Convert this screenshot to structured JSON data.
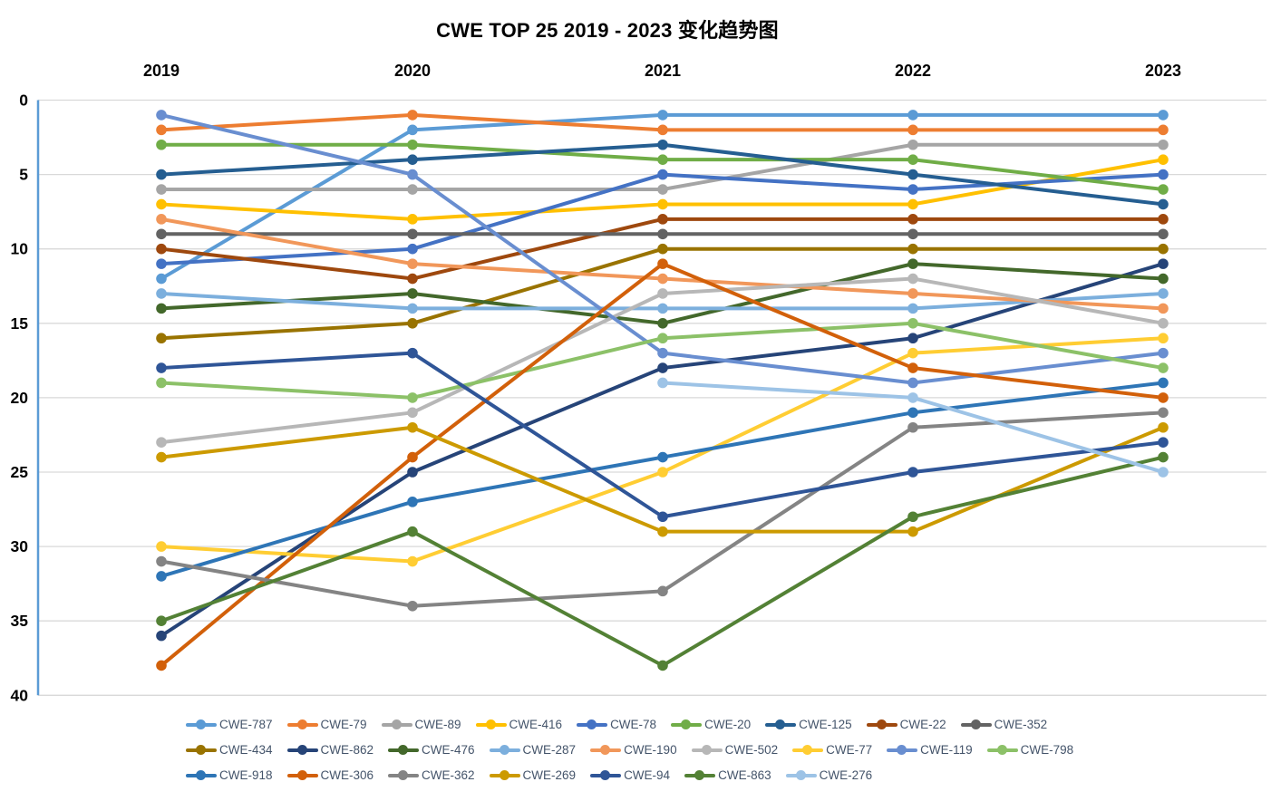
{
  "title": "CWE TOP 25 2019 - 2023 变化趋势图",
  "colors": {
    "axis_line": "#5B9BD5",
    "gridline": "#D9D9D9",
    "tick_text": "#000000",
    "legend_text": "#44546A"
  },
  "chart_data": {
    "type": "line",
    "title": "CWE TOP 25 2019 - 2023 变化趋势图",
    "x": [
      "2019",
      "2020",
      "2021",
      "2022",
      "2023"
    ],
    "xlabel": "",
    "ylabel": "",
    "y_axis": {
      "min": 0,
      "max": 40,
      "tick_step": 5,
      "inverted": true,
      "ticks": [
        0,
        5,
        10,
        15,
        20,
        25,
        30,
        35,
        40
      ]
    },
    "grid": true,
    "legend_position": "bottom",
    "series": [
      {
        "name": "CWE-787",
        "color": "#5B9BD5",
        "values": [
          12,
          2,
          1,
          1,
          1
        ]
      },
      {
        "name": "CWE-79",
        "color": "#ED7D31",
        "values": [
          2,
          1,
          2,
          2,
          2
        ]
      },
      {
        "name": "CWE-89",
        "color": "#A5A5A5",
        "values": [
          6,
          6,
          6,
          3,
          3
        ]
      },
      {
        "name": "CWE-416",
        "color": "#FFC000",
        "values": [
          7,
          8,
          7,
          7,
          4
        ]
      },
      {
        "name": "CWE-78",
        "color": "#4472C4",
        "values": [
          11,
          10,
          5,
          6,
          5
        ]
      },
      {
        "name": "CWE-20",
        "color": "#70AD47",
        "values": [
          3,
          3,
          4,
          4,
          6
        ]
      },
      {
        "name": "CWE-125",
        "color": "#255E91",
        "values": [
          5,
          4,
          3,
          5,
          7
        ]
      },
      {
        "name": "CWE-22",
        "color": "#9E480E",
        "values": [
          10,
          12,
          8,
          8,
          8
        ]
      },
      {
        "name": "CWE-352",
        "color": "#636363",
        "values": [
          9,
          9,
          9,
          9,
          9
        ]
      },
      {
        "name": "CWE-434",
        "color": "#997300",
        "values": [
          16,
          15,
          10,
          10,
          10
        ]
      },
      {
        "name": "CWE-862",
        "color": "#264478",
        "values": [
          36,
          25,
          18,
          16,
          11
        ]
      },
      {
        "name": "CWE-476",
        "color": "#43682B",
        "values": [
          14,
          13,
          15,
          11,
          12
        ]
      },
      {
        "name": "CWE-287",
        "color": "#7CAFDD",
        "values": [
          13,
          14,
          14,
          14,
          13
        ]
      },
      {
        "name": "CWE-190",
        "color": "#F1975A",
        "values": [
          8,
          11,
          12,
          13,
          14
        ]
      },
      {
        "name": "CWE-502",
        "color": "#B7B7B7",
        "values": [
          23,
          21,
          13,
          12,
          15
        ]
      },
      {
        "name": "CWE-77",
        "color": "#FFCD33",
        "values": [
          30,
          31,
          25,
          17,
          16
        ]
      },
      {
        "name": "CWE-119",
        "color": "#698ED0",
        "values": [
          1,
          5,
          17,
          19,
          17
        ]
      },
      {
        "name": "CWE-798",
        "color": "#8CC168",
        "values": [
          19,
          20,
          16,
          15,
          18
        ]
      },
      {
        "name": "CWE-918",
        "color": "#2E75B6",
        "values": [
          32,
          27,
          24,
          21,
          19
        ]
      },
      {
        "name": "CWE-306",
        "color": "#D2600A",
        "values": [
          38,
          24,
          11,
          18,
          20
        ]
      },
      {
        "name": "CWE-362",
        "color": "#848484",
        "values": [
          31,
          34,
          33,
          22,
          21
        ]
      },
      {
        "name": "CWE-269",
        "color": "#CC9A00",
        "values": [
          24,
          22,
          29,
          29,
          22
        ]
      },
      {
        "name": "CWE-94",
        "color": "#2F5597",
        "values": [
          18,
          17,
          28,
          25,
          23
        ]
      },
      {
        "name": "CWE-863",
        "color": "#538135",
        "values": [
          35,
          29,
          38,
          28,
          24
        ]
      },
      {
        "name": "CWE-276",
        "color": "#9DC3E6",
        "values": [
          null,
          null,
          19,
          20,
          25
        ]
      }
    ],
    "legend_rows": [
      [
        "CWE-787",
        "CWE-79",
        "CWE-89",
        "CWE-416",
        "CWE-78",
        "CWE-20",
        "CWE-125",
        "CWE-22",
        "CWE-352"
      ],
      [
        "CWE-434",
        "CWE-862",
        "CWE-476",
        "CWE-287",
        "CWE-190",
        "CWE-502",
        "CWE-77",
        "CWE-119",
        "CWE-798"
      ],
      [
        "CWE-918",
        "CWE-306",
        "CWE-362",
        "CWE-269",
        "CWE-94",
        "CWE-863",
        "CWE-276"
      ]
    ]
  }
}
